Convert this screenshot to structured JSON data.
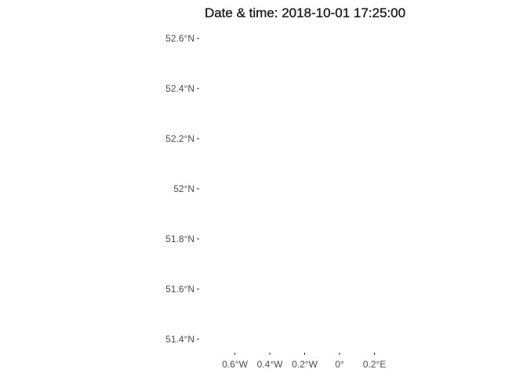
{
  "title": "Date & time: 2018-10-01 17:25:00",
  "map": {
    "type": "map",
    "projection": "lon-lat",
    "xlim": [
      -0.8,
      0.4
    ],
    "ylim": [
      51.35,
      52.65
    ],
    "x_ticks": [
      {
        "value": -0.6,
        "label": "0.6°W"
      },
      {
        "value": -0.4,
        "label": "0.4°W"
      },
      {
        "value": -0.2,
        "label": "0.2°W"
      },
      {
        "value": 0.0,
        "label": "0°"
      },
      {
        "value": 0.2,
        "label": "0.2°E"
      }
    ],
    "y_ticks": [
      {
        "value": 52.6,
        "label": "52.6°N"
      },
      {
        "value": 52.4,
        "label": "52.4°N"
      },
      {
        "value": 52.2,
        "label": "52.2°N"
      },
      {
        "value": 52.0,
        "label": "52°N"
      },
      {
        "value": 51.8,
        "label": "51.8°N"
      },
      {
        "value": 51.6,
        "label": "51.6°N"
      },
      {
        "value": 51.4,
        "label": "51.4°N"
      }
    ],
    "grid": false,
    "background": "#ffffff",
    "features": []
  }
}
